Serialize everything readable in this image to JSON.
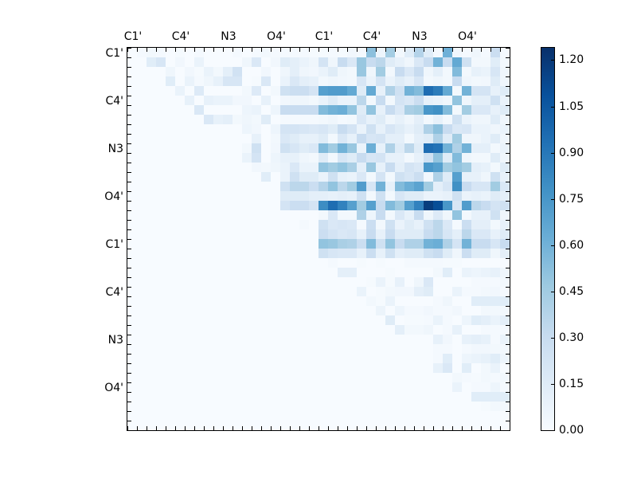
{
  "chart_data": {
    "type": "heatmap",
    "title": "",
    "xlabel": "",
    "ylabel": "",
    "n": 40,
    "x_tick_labels": [
      {
        "index": 0,
        "label": "C1'"
      },
      {
        "index": 5,
        "label": "C4'"
      },
      {
        "index": 10,
        "label": "N3"
      },
      {
        "index": 15,
        "label": "O4'"
      },
      {
        "index": 20,
        "label": "C1'"
      },
      {
        "index": 25,
        "label": "C4'"
      },
      {
        "index": 30,
        "label": "N3"
      },
      {
        "index": 35,
        "label": "O4'"
      }
    ],
    "y_tick_labels": [
      {
        "index": 0,
        "label": "C1'"
      },
      {
        "index": 5,
        "label": "C4'"
      },
      {
        "index": 10,
        "label": "N3"
      },
      {
        "index": 15,
        "label": "O4'"
      },
      {
        "index": 20,
        "label": "C1'"
      },
      {
        "index": 25,
        "label": "C4'"
      },
      {
        "index": 30,
        "label": "N3"
      },
      {
        "index": 35,
        "label": "O4'"
      }
    ],
    "x_position": "top",
    "colormap": "Blues",
    "vmin": 0.0,
    "vmax": 1.24,
    "colorbar_ticks": [
      "0.00",
      "0.15",
      "0.30",
      "0.45",
      "0.60",
      "0.75",
      "0.90",
      "1.05",
      "1.20"
    ],
    "colorbar_tick_values": [
      0,
      0.15,
      0.3,
      0.45,
      0.6,
      0.75,
      0.9,
      1.05,
      1.2
    ],
    "matrix_rows_scaled_x100": [
      "0 2 3 2 0 1 0 2 0 0 0 2 0 2 3 2 2 2 2 1 1 2 1 4 2 52 6 44 3 14 38 14 2 61 4 2 5 2 28 2",
      "0 0 14 20 0 4 0 8 0 0 0 0 5 18 0 4 15 12 8 5 22 5 30 18 48 30 35 15 10 5 18 30 60 30 65 25 3 3 14 3",
      "0 0 0 0 5 0 4 1 8 3 12 24 0 0 4 0 5 12 5 4 8 15 5 3 48 5 45 3 30 18 30 5 12 3 55 3 10 8 20 5",
      "0 0 0 0 14 0 8 2 5 10 20 20 0 1 18 0 8 18 12 10 3 5 4 3 20 8 22 8 15 10 20 3 5 3 30 5 3 4 15 5",
      "0 0 0 0 0 8 0 16 0 0 0 0 3 16 0 3 25 28 28 22 70 72 72 65 15 65 10 40 25 60 55 95 88 65 3 60 22 22 10 15",
      "0 0 0 0 0 0 10 0 10 8 8 4 4 0 10 0 4 5 5 3 8 15 8 8 35 3 30 3 22 18 28 10 8 5 50 5 12 12 25 8",
      "0 0 0 0 0 0 0 18 0 0 0 0 6 8 0 6 30 30 30 30 55 60 62 50 15 50 10 30 18 42 45 75 78 55 3 45 18 18 10 15",
      "0 0 0 0 0 0 0 0 18 10 12 3 5 3 15 0 2 2 2 2 3 5 2 3 18 10 15 5 10 5 12 3 10 3 25 8 5 5 15 5",
      "0 0 0 0 0 0 0 0 0 0 0 0 6 4 0 6 22 22 20 18 20 15 30 22 8 25 10 20 15 10 15 40 52 30 18 20 8 8 5 8",
      "0 0 0 0 0 0 0 0 0 0 0 0 0 10 0 3 18 15 10 10 15 3 18 10 30 20 22 12 12 3 12 15 40 15 45 5 5 8 15 5",
      "0 0 0 0 0 0 0 0 0 0 0 0 3 25 0 4 25 20 15 18 55 45 60 48 8 62 10 40 15 35 15 95 92 60 40 60 12 12 3 8",
      "0 0 0 0 0 0 0 0 0 0 0 0 8 22 0 6 10 10 5 3 15 3 20 15 30 20 22 10 10 3 10 25 50 15 55 5 3 3 15 5",
      "0 0 0 0 0 0 0 0 0 0 0 0 0 4 3 5 8 18 8 8 50 45 50 42 12 48 10 30 12 22 18 75 70 45 50 45 12 10 3 15",
      "0 0 0 0 0 0 0 0 0 0 0 0 0 0 14 0 8 25 15 15 8 25 10 8 18 3 22 3 25 20 28 4 40 15 70 10 10 5 25 10",
      "0 0 0 0 0 0 0 0 0 0 0 0 0 0 0 0 25 35 35 28 38 50 35 45 72 20 60 10 55 62 68 45 12 20 78 30 20 20 45 18",
      "0 0 0 0 0 0 0 0 0 0 0 0 0 0 0 0 15 15 15 12 12 10 12 10 25 3 25 3 20 15 15 8 8 10 25 8 10 8 15 12",
      "0 0 0 0 0 0 0 0 0 0 0 0 0 0 0 0 22 28 28 22 80 95 85 70 45 70 30 55 45 70 85 118 110 75 20 72 35 30 22 25",
      "0 0 0 0 0 0 0 0 0 0 0 0 0 0 0 0 0 0 0 0 3 18 3 3 40 6 30 3 18 10 30 5 16 5 50 3 10 10 25 5",
      "0 0 0 0 0 0 0 0 0 0 0 0 0 0 0 0 0 0 2 0 25 18 20 18 2 28 3 25 8 15 10 25 35 18 2 28 12 12 3 10",
      "0 0 0 0 0 0 0 0 0 0 0 0 0 0 0 0 0 0 0 0 28 22 18 20 10 30 10 30 15 15 15 30 35 20 12 35 18 18 10 15",
      "0 0 0 0 0 0 0 0 0 0 0 0 0 0 0 0 0 0 0 0 50 48 42 40 28 55 25 50 30 40 40 60 62 40 22 60 30 30 20 30",
      "0 0 0 0 0 0 0 0 0 0 0 0 0 0 0 0 0 0 0 0 25 20 18 18 10 28 10 25 12 15 15 25 30 15 5 28 15 15 5 12",
      "0 0 0 0 0 0 0 0 0 0 0 0 0 0 0 0 0 0 0 0 0 2 0 0 1 0 1 0 0 2 2 2 2 1 1 0 0 0 0 0",
      "0 0 0 0 0 0 0 0 0 0 0 0 0 0 0 0 0 0 0 0 0 0 12 12 0 0 0 1 0 0 0 0 3 14 0 8 6 8 10 5",
      "0 0 0 0 0 0 0 0 0 0 0 0 0 0 0 0 0 0 0 0 0 0 0 0 0 1 8 1 10 0 5 18 0 0 0 0 2 2 2 3",
      "0 0 0 0 0 0 0 0 0 0 0 0 0 0 0 0 0 0 0 0 0 0 0 0 8 0 1 3 4 4 12 15 0 0 8 2 2 3 4 2",
      "0 0 0 0 0 0 0 0 0 0 0 0 0 0 0 0 0 0 0 0 0 0 0 0 0 3 1 8 0 0 0 0 2 5 0 0 14 14 14 14",
      "0 0 0 0 0 0 0 0 0 0 0 0 0 0 0 0 0 0 0 0 0 0 0 0 0 0 7 0 6 2 2 4 2 2 4 0 0 3 3 3",
      "0 0 0 0 0 0 0 0 0 0 0 0 0 0 0 0 0 0 0 0 0 0 0 0 0 0 0 15 0 1 1 2 8 2 0 6 14 12 8 12",
      "0 0 0 0 0 0 0 0 0 0 0 0 0 0 0 0 0 0 0 0 0 0 0 0 0 0 0 0 12 3 3 5 0 2 10 0 0 2 2 2",
      "0 0 0 0 0 0 0 0 0 0 0 0 0 0 0 0 0 0 0 0 0 0 0 0 0 0 0 0 0 0 0 0 10 4 0 10 12 10 2 8",
      "0 0 0 0 0 0 0 0 0 0 0 0 0 0 0 0 0 0 0 0 0 0 0 0 0 0 0 0 0 0 0 0 2 2 0 2 4 4 3 3",
      "0 0 0 0 0 0 0 0 0 0 0 0 0 0 0 0 0 0 0 0 0 0 0 0 0 0 0 0 0 0 0 0 2 14 0 6 8 10 14 6",
      "0 0 0 0 0 0 0 0 0 0 0 0 0 0 0 0 0 0 0 0 0 0 0 0 0 0 0 0 0 0 0 0 10 18 0 14 0 3 8 0",
      "0 0 0 0 0 0 0 0 0 0 0 0 0 0 0 0 0 0 0 0 0 0 0 0 0 0 0 0 0 0 0 0 0 0 3 2 1 3 2 3",
      "0 0 0 0 0 0 0 0 0 0 0 0 0 0 0 0 0 0 0 0 0 0 0 0 0 0 0 0 0 0 0 0 0 0 8 0 2 2 6 2",
      "0 0 0 0 0 0 0 0 0 0 0 0 0 0 0 0 0 0 0 0 0 0 0 0 0 0 0 0 0 0 0 0 0 0 0 0 14 14 14 14",
      "0 0 0 0 0 0 0 0 0 0 0 0 0 0 0 0 0 0 0 0 0 0 0 0 0 0 0 0 0 0 0 0 0 0 0 0 0 1 3 3",
      "0 0 0 0 0 0 0 0 0 0 0 0 0 0 0 0 0 0 0 0 0 0 0 0 0 0 0 0 0 0 0 0 0 0 0 0 0 0 0 0",
      "0 0 0 0 0 0 0 0 0 0 0 0 0 0 0 0 0 0 0 0 0 0 0 0 0 0 0 0 0 0 0 0 0 0 0 0 0 0 0 0"
    ]
  }
}
